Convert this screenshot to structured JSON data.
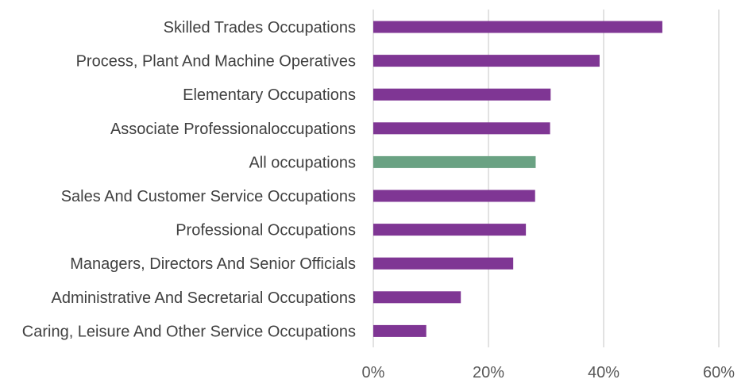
{
  "chart_data": {
    "type": "bar",
    "orientation": "horizontal",
    "categories": [
      "Skilled Trades Occupations",
      "Process, Plant And Machine Operatives",
      "Elementary Occupations",
      "Associate Professionaloccupations",
      "All occupations",
      "Sales And Customer Service Occupations",
      "Professional Occupations",
      "Managers, Directors And Senior Officials",
      "Administrative And Secretarial Occupations",
      "Caring, Leisure And Other Service Occupations"
    ],
    "values": [
      50.2,
      39.3,
      30.8,
      30.7,
      28.2,
      28.1,
      26.5,
      24.3,
      15.2,
      9.2
    ],
    "highlight_category": "All occupations",
    "xlim": [
      0,
      60
    ],
    "xticks": [
      0,
      20,
      40,
      60
    ],
    "xtick_labels": [
      "0%",
      "20%",
      "40%",
      "60%"
    ],
    "grid": "vertical",
    "title": "",
    "xlabel": "",
    "ylabel": "",
    "colors": {
      "bar": "#7f3694",
      "highlight": "#6aa283",
      "grid": "#d9d9d9",
      "text": "#404040"
    }
  }
}
